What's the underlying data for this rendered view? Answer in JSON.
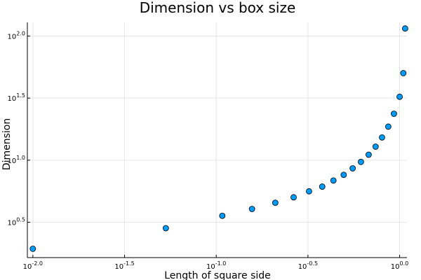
{
  "chart_data": {
    "type": "scatter",
    "title": "Dimension vs box size",
    "xlabel": "Length of square side",
    "ylabel": "Dimension",
    "x_scale": "log10",
    "y_scale": "log10",
    "xlim_log10": [
      -2.03,
      0.04
    ],
    "ylim_log10": [
      0.215,
      2.11
    ],
    "x_ticks": [
      {
        "base": "10",
        "exp": "-2.0",
        "value_log10": -2.0
      },
      {
        "base": "10",
        "exp": "-1.5",
        "value_log10": -1.5
      },
      {
        "base": "10",
        "exp": "-1.0",
        "value_log10": -1.0
      },
      {
        "base": "10",
        "exp": "-0.5",
        "value_log10": -0.5
      },
      {
        "base": "10",
        "exp": "0.0",
        "value_log10": 0.0
      }
    ],
    "y_ticks": [
      {
        "base": "10",
        "exp": "0.5",
        "value_log10": 0.5
      },
      {
        "base": "10",
        "exp": "1.0",
        "value_log10": 1.0
      },
      {
        "base": "10",
        "exp": "1.5",
        "value_log10": 1.5
      },
      {
        "base": "10",
        "exp": "2.0",
        "value_log10": 2.0
      }
    ],
    "grid": true,
    "legend": "none",
    "marker_color": "#009AF9",
    "marker_edge_color": "#000000",
    "points_log10": [
      {
        "x": -2.0,
        "y": 0.286
      },
      {
        "x": -1.275,
        "y": 0.452
      },
      {
        "x": -0.967,
        "y": 0.552
      },
      {
        "x": -0.805,
        "y": 0.607
      },
      {
        "x": -0.678,
        "y": 0.657
      },
      {
        "x": -0.578,
        "y": 0.701
      },
      {
        "x": -0.494,
        "y": 0.749
      },
      {
        "x": -0.422,
        "y": 0.787
      },
      {
        "x": -0.361,
        "y": 0.836
      },
      {
        "x": -0.305,
        "y": 0.882
      },
      {
        "x": -0.256,
        "y": 0.934
      },
      {
        "x": -0.211,
        "y": 0.986
      },
      {
        "x": -0.169,
        "y": 1.044
      },
      {
        "x": -0.131,
        "y": 1.109
      },
      {
        "x": -0.096,
        "y": 1.183
      },
      {
        "x": -0.062,
        "y": 1.27
      },
      {
        "x": -0.031,
        "y": 1.374
      },
      {
        "x": 0.0,
        "y": 1.511
      },
      {
        "x": 0.02,
        "y": 1.701
      },
      {
        "x": 0.03,
        "y": 2.061
      }
    ]
  }
}
